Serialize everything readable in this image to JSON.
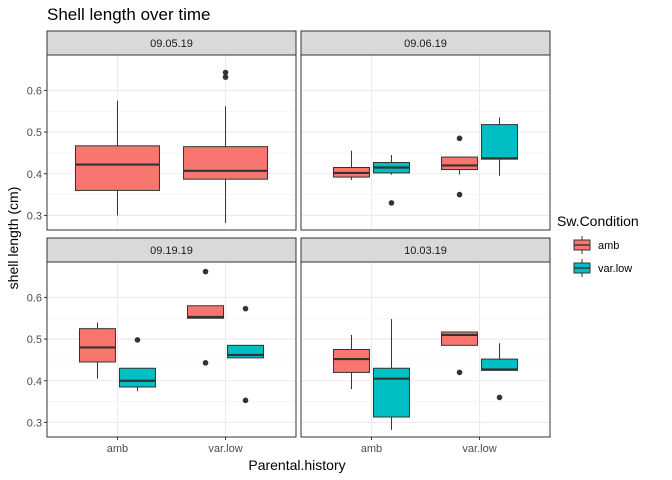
{
  "chart_data": {
    "type": "boxplot",
    "title": "Shell length over time",
    "xlabel": "Parental.history",
    "ylabel": "shell length (cm)",
    "ylim": [
      0.265,
      0.685
    ],
    "yticks": [
      0.3,
      0.4,
      0.5,
      0.6
    ],
    "ytick_labels": [
      "0.3",
      "0.4",
      "0.5",
      "0.6"
    ],
    "categories": [
      "amb",
      "var.low"
    ],
    "legend": {
      "title": "Sw.Condition",
      "entries": [
        {
          "name": "amb",
          "color": "#F8766D"
        },
        {
          "name": "var.low",
          "color": "#00BFC4"
        }
      ]
    },
    "panels": [
      {
        "label": "09.05.19",
        "boxes": [
          {
            "category": "amb",
            "condition": "amb",
            "full_width": true,
            "whisker_low": 0.3,
            "q1": 0.36,
            "median": 0.422,
            "q3": 0.467,
            "whisker_high": 0.575,
            "outliers": []
          },
          {
            "category": "var.low",
            "condition": "amb",
            "full_width": true,
            "whisker_low": 0.282,
            "q1": 0.387,
            "median": 0.407,
            "q3": 0.465,
            "whisker_high": 0.562,
            "outliers": [
              0.632,
              0.643
            ]
          }
        ]
      },
      {
        "label": "09.06.19",
        "boxes": [
          {
            "category": "amb",
            "condition": "amb",
            "whisker_low": 0.385,
            "q1": 0.392,
            "median": 0.402,
            "q3": 0.415,
            "whisker_high": 0.455,
            "outliers": []
          },
          {
            "category": "amb",
            "condition": "var.low",
            "whisker_low": 0.398,
            "q1": 0.402,
            "median": 0.415,
            "q3": 0.427,
            "whisker_high": 0.445,
            "outliers": [
              0.33
            ]
          },
          {
            "category": "var.low",
            "condition": "amb",
            "whisker_low": 0.398,
            "q1": 0.41,
            "median": 0.42,
            "q3": 0.44,
            "whisker_high": 0.44,
            "outliers": [
              0.485,
              0.35
            ]
          },
          {
            "category": "var.low",
            "condition": "var.low",
            "whisker_low": 0.395,
            "q1": 0.435,
            "median": 0.437,
            "q3": 0.518,
            "whisker_high": 0.535,
            "outliers": []
          }
        ]
      },
      {
        "label": "09.19.19",
        "boxes": [
          {
            "category": "amb",
            "condition": "amb",
            "whisker_low": 0.405,
            "q1": 0.445,
            "median": 0.48,
            "q3": 0.525,
            "whisker_high": 0.54,
            "outliers": []
          },
          {
            "category": "amb",
            "condition": "var.low",
            "whisker_low": 0.375,
            "q1": 0.385,
            "median": 0.4,
            "q3": 0.43,
            "whisker_high": 0.43,
            "outliers": [
              0.498
            ]
          },
          {
            "category": "var.low",
            "condition": "amb",
            "whisker_low": 0.55,
            "q1": 0.55,
            "median": 0.553,
            "q3": 0.58,
            "whisker_high": 0.58,
            "outliers": [
              0.662,
              0.443
            ]
          },
          {
            "category": "var.low",
            "condition": "var.low",
            "whisker_low": 0.455,
            "q1": 0.455,
            "median": 0.462,
            "q3": 0.485,
            "whisker_high": 0.485,
            "outliers": [
              0.573,
              0.353
            ]
          }
        ]
      },
      {
        "label": "10.03.19",
        "boxes": [
          {
            "category": "amb",
            "condition": "amb",
            "whisker_low": 0.38,
            "q1": 0.42,
            "median": 0.452,
            "q3": 0.475,
            "whisker_high": 0.51,
            "outliers": []
          },
          {
            "category": "amb",
            "condition": "var.low",
            "whisker_low": 0.282,
            "q1": 0.313,
            "median": 0.405,
            "q3": 0.43,
            "whisker_high": 0.548,
            "outliers": []
          },
          {
            "category": "var.low",
            "condition": "amb",
            "whisker_low": 0.485,
            "q1": 0.485,
            "median": 0.51,
            "q3": 0.517,
            "whisker_high": 0.517,
            "outliers": [
              0.42
            ]
          },
          {
            "category": "var.low",
            "condition": "var.low",
            "whisker_low": 0.425,
            "q1": 0.425,
            "median": 0.427,
            "q3": 0.452,
            "whisker_high": 0.49,
            "outliers": [
              0.36
            ]
          }
        ]
      }
    ]
  }
}
